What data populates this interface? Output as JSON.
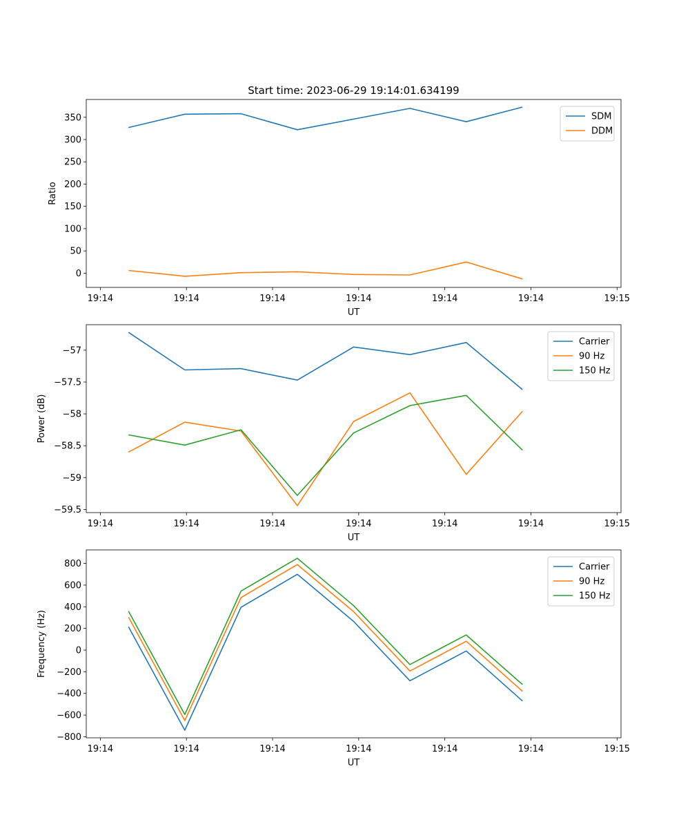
{
  "figure_title": "Start time: 2023-06-29 19:14:01.634199",
  "colors": {
    "blue": "#1f77b4",
    "orange": "#ff7f0e",
    "green": "#2ca02c"
  },
  "chart_data": [
    {
      "type": "line",
      "xlabel": "UT",
      "ylabel": "Ratio",
      "ylim": [
        -32,
        390
      ],
      "xlim": [
        -0.25,
        9.25
      ],
      "x": [
        0.5,
        1.5,
        2.5,
        3.5,
        4.5,
        5.5,
        6.5,
        7.5
      ],
      "x_ticks": [
        {
          "pos": 0,
          "label": "19:14"
        },
        {
          "pos": 1.53,
          "label": "19:14"
        },
        {
          "pos": 3.06,
          "label": "19:14"
        },
        {
          "pos": 4.59,
          "label": "19:14"
        },
        {
          "pos": 6.12,
          "label": "19:14"
        },
        {
          "pos": 7.65,
          "label": "19:14"
        },
        {
          "pos": 9.18,
          "label": "19:15"
        }
      ],
      "y_ticks": [
        0,
        50,
        100,
        150,
        200,
        250,
        300,
        350
      ],
      "legend_position": "top-right",
      "series": [
        {
          "name": "SDM",
          "color": "#1f77b4",
          "values": [
            327,
            357,
            358,
            322,
            346,
            370,
            340,
            373
          ]
        },
        {
          "name": "DDM",
          "color": "#ff7f0e",
          "values": [
            6,
            -7,
            1,
            3,
            -3,
            -4,
            25,
            -13
          ]
        }
      ]
    },
    {
      "type": "line",
      "xlabel": "UT",
      "ylabel": "Power (dB)",
      "ylim": [
        -59.55,
        -56.6
      ],
      "xlim": [
        -0.25,
        9.25
      ],
      "x": [
        0.5,
        1.5,
        2.5,
        3.5,
        4.5,
        5.5,
        6.5,
        7.5
      ],
      "x_ticks": [
        {
          "pos": 0,
          "label": "19:14"
        },
        {
          "pos": 1.53,
          "label": "19:14"
        },
        {
          "pos": 3.06,
          "label": "19:14"
        },
        {
          "pos": 4.59,
          "label": "19:14"
        },
        {
          "pos": 6.12,
          "label": "19:14"
        },
        {
          "pos": 7.65,
          "label": "19:14"
        },
        {
          "pos": 9.18,
          "label": "19:15"
        }
      ],
      "y_ticks": [
        -59.5,
        -59.0,
        -58.5,
        -58.0,
        -57.5,
        -57.0
      ],
      "legend_position": "top-right",
      "series": [
        {
          "name": "Carrier",
          "color": "#1f77b4",
          "values": [
            -56.72,
            -57.31,
            -57.29,
            -57.47,
            -56.95,
            -57.07,
            -56.88,
            -57.62
          ]
        },
        {
          "name": "90 Hz",
          "color": "#ff7f0e",
          "values": [
            -58.6,
            -58.13,
            -58.27,
            -59.44,
            -58.12,
            -57.67,
            -58.95,
            -57.96
          ]
        },
        {
          "name": "150 Hz",
          "color": "#2ca02c",
          "values": [
            -58.33,
            -58.49,
            -58.25,
            -59.28,
            -58.3,
            -57.87,
            -57.71,
            -58.57
          ]
        }
      ]
    },
    {
      "type": "line",
      "xlabel": "UT",
      "ylabel": "Frequency (Hz)",
      "ylim": [
        -810,
        925
      ],
      "xlim": [
        -0.25,
        9.25
      ],
      "x": [
        0.5,
        1.5,
        2.5,
        3.5,
        4.5,
        5.5,
        6.5,
        7.5
      ],
      "x_ticks": [
        {
          "pos": 0,
          "label": "19:14"
        },
        {
          "pos": 1.53,
          "label": "19:14"
        },
        {
          "pos": 3.06,
          "label": "19:14"
        },
        {
          "pos": 4.59,
          "label": "19:14"
        },
        {
          "pos": 6.12,
          "label": "19:14"
        },
        {
          "pos": 7.65,
          "label": "19:14"
        },
        {
          "pos": 9.18,
          "label": "19:15"
        }
      ],
      "y_ticks": [
        -800,
        -600,
        -400,
        -200,
        0,
        200,
        400,
        600,
        800
      ],
      "legend_position": "top-right",
      "series": [
        {
          "name": "Carrier",
          "color": "#1f77b4",
          "values": [
            215,
            -740,
            395,
            700,
            265,
            -283,
            -8,
            -470
          ]
        },
        {
          "name": "90 Hz",
          "color": "#ff7f0e",
          "values": [
            305,
            -650,
            485,
            790,
            355,
            -193,
            82,
            -380
          ]
        },
        {
          "name": "150 Hz",
          "color": "#2ca02c",
          "values": [
            360,
            -595,
            545,
            848,
            410,
            -133,
            140,
            -318
          ]
        }
      ]
    }
  ]
}
